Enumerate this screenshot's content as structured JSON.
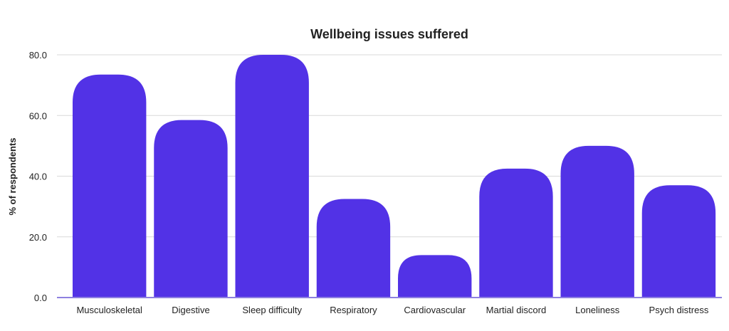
{
  "chart_data": {
    "type": "bar",
    "title": "Wellbeing issues suffered",
    "xlabel": "",
    "ylabel": "% of respondents",
    "categories": [
      "Musculoskeletal",
      "Digestive",
      "Sleep difficulty",
      "Respiratory",
      "Cardiovascular",
      "Martial discord",
      "Loneliness",
      "Psych distress"
    ],
    "values": [
      73.5,
      58.5,
      80.0,
      32.5,
      14.0,
      42.5,
      50.0,
      37.0
    ],
    "ylim": [
      0,
      80
    ],
    "yticks": [
      "0.0",
      "20.0",
      "40.0",
      "60.0",
      "80.0"
    ],
    "ytick_values": [
      0,
      20,
      40,
      60,
      80
    ],
    "grid": true,
    "colors": {
      "bar": "#5232e6",
      "grid": "#d9d9d9",
      "baseline": "#8e80e0"
    }
  }
}
